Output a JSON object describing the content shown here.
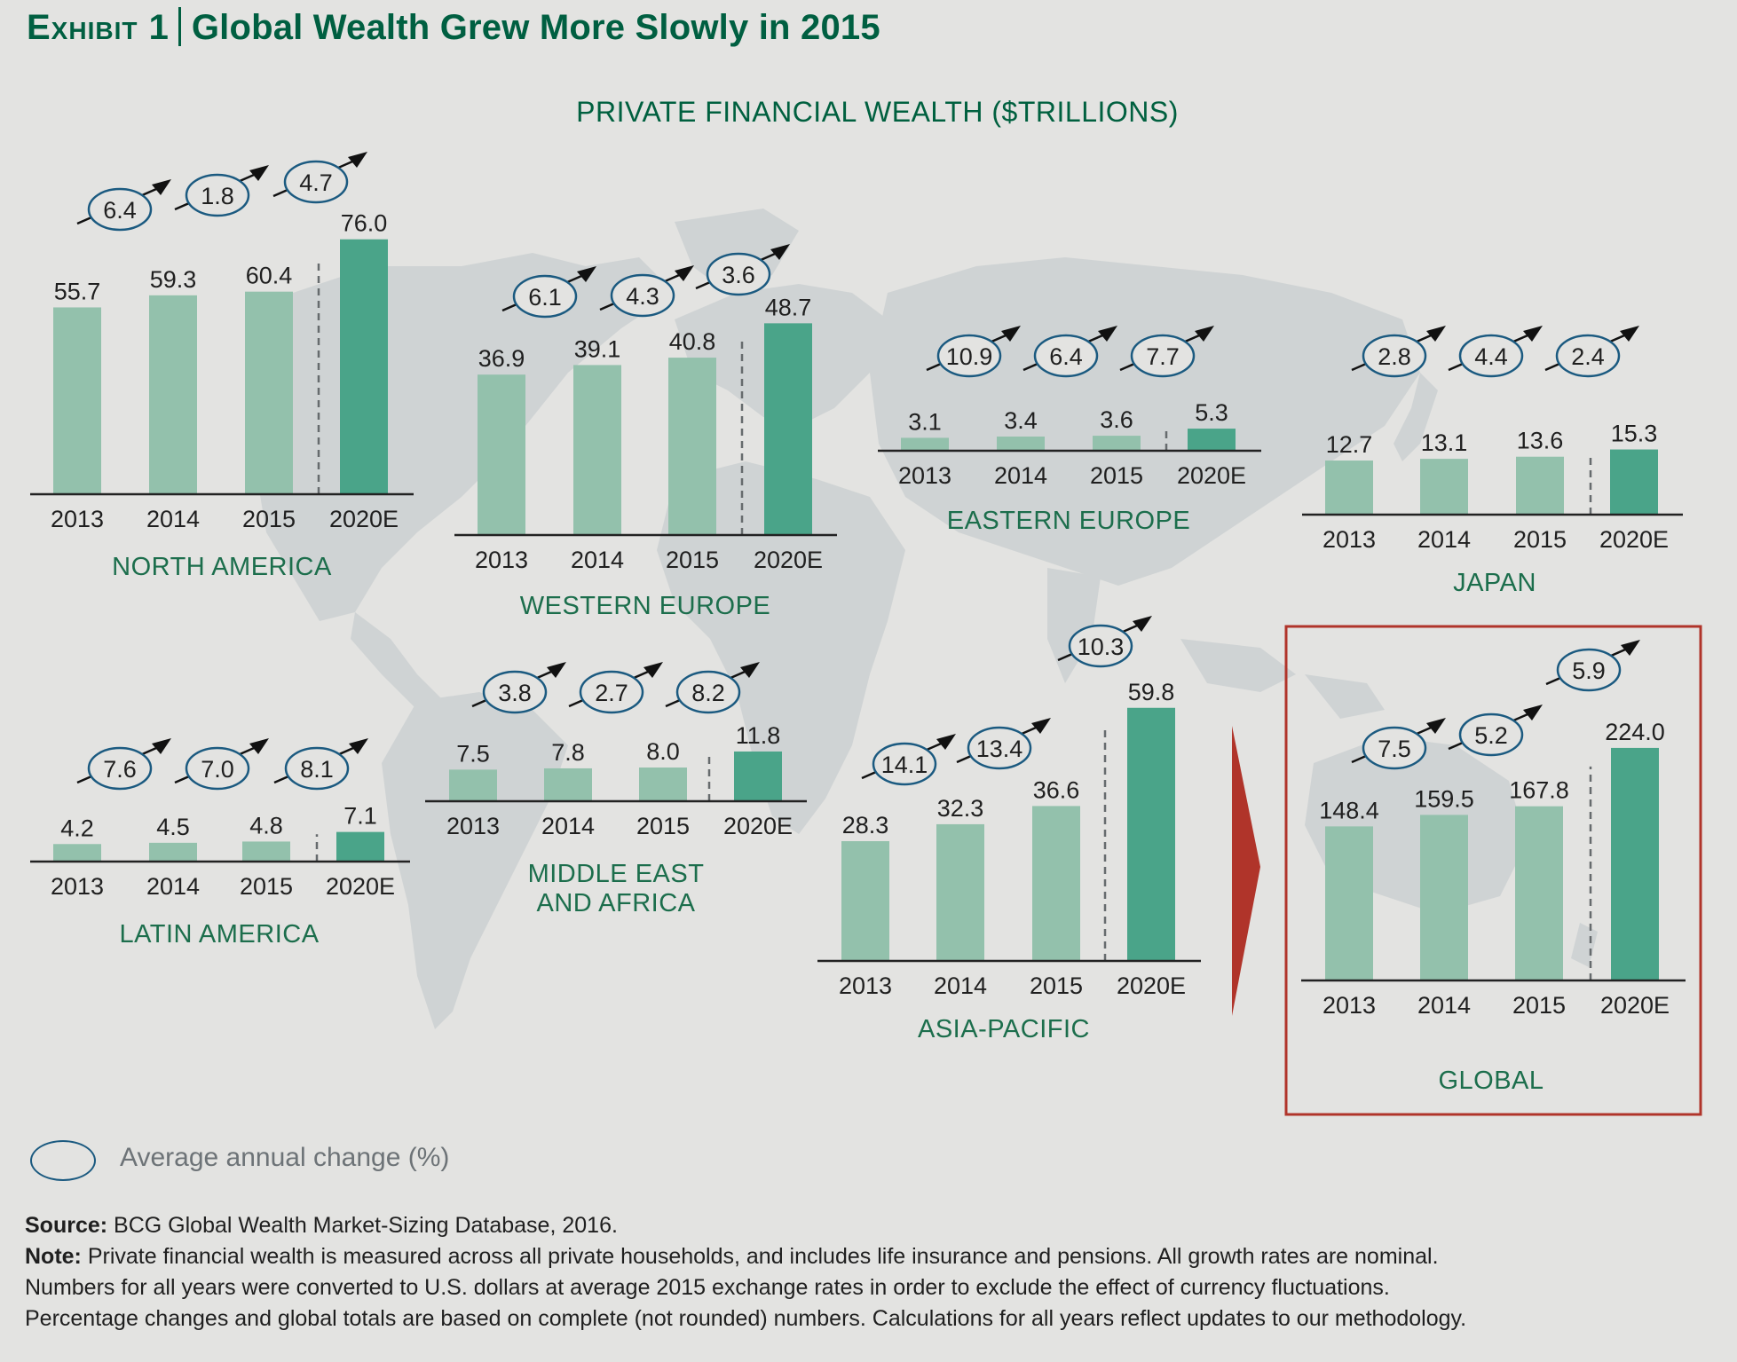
{
  "header": {
    "exhibit_label": "Exhibit 1",
    "title": "Global Wealth Grew More Slowly in 2015",
    "subtitle": "PRIVATE FINANCIAL WEALTH ($TRILLIONS)"
  },
  "legend": {
    "label": "Average annual change (%)"
  },
  "footer": {
    "source_label": "Source:",
    "source_text": "BCG Global Wealth Market-Sizing Database, 2016.",
    "note_label": "Note:",
    "note_line1": "Private financial wealth is measured across all private households, and includes life insurance and pensions. All growth rates are nominal.",
    "note_line2": "Numbers for all years were converted to U.S. dollars at average 2015 exchange rates in order to exclude the effect of currency fluctuations.",
    "note_line3": "Percentage changes and global totals are based on complete (not rounded) numbers. Calculations for all years reflect updates to our methodology."
  },
  "colors": {
    "actual_bar": "#93c1ac",
    "estimate_bar": "#4aa489",
    "growth_ellipse": "#1b5a80",
    "region_label": "#1c6e4c",
    "title": "#005f41",
    "highlight_box": "#b0342a",
    "map": "#cfd3d4",
    "background": "#e3e3e1"
  },
  "chart_data": {
    "type": "bar",
    "title": "PRIVATE FINANCIAL WEALTH ($TRILLIONS)",
    "xlabel": "",
    "ylabel": "$ trillions",
    "categories": [
      "2013",
      "2014",
      "2015",
      "2020E"
    ],
    "estimate_category": "2020E",
    "growth_label": "Average annual change (%)",
    "panels": [
      {
        "id": "north-america",
        "region": "NORTH AMERICA",
        "values": [
          55.7,
          59.3,
          60.4,
          76.0
        ],
        "value_labels": [
          "55.7",
          "59.3",
          "60.4",
          "76.0"
        ],
        "growth": [
          "6.4",
          "1.8",
          "4.7"
        ]
      },
      {
        "id": "western-europe",
        "region": "WESTERN EUROPE",
        "values": [
          36.9,
          39.1,
          40.8,
          48.7
        ],
        "value_labels": [
          "36.9",
          "39.1",
          "40.8",
          "48.7"
        ],
        "growth": [
          "6.1",
          "4.3",
          "3.6"
        ]
      },
      {
        "id": "eastern-europe",
        "region": "EASTERN EUROPE",
        "values": [
          3.1,
          3.4,
          3.6,
          5.3
        ],
        "value_labels": [
          "3.1",
          "3.4",
          "3.6",
          "5.3"
        ],
        "growth": [
          "10.9",
          "6.4",
          "7.7"
        ]
      },
      {
        "id": "japan",
        "region": "JAPAN",
        "values": [
          12.7,
          13.1,
          13.6,
          15.3
        ],
        "value_labels": [
          "12.7",
          "13.1",
          "13.6",
          "15.3"
        ],
        "growth": [
          "2.8",
          "4.4",
          "2.4"
        ]
      },
      {
        "id": "latin-america",
        "region": "LATIN AMERICA",
        "values": [
          4.2,
          4.5,
          4.8,
          7.1
        ],
        "value_labels": [
          "4.2",
          "4.5",
          "4.8",
          "7.1"
        ],
        "growth": [
          "7.6",
          "7.0",
          "8.1"
        ]
      },
      {
        "id": "middle-east-africa",
        "region": "MIDDLE EAST AND AFRICA",
        "region_lines": [
          "MIDDLE EAST",
          "AND AFRICA"
        ],
        "values": [
          7.5,
          7.8,
          8.0,
          11.8
        ],
        "value_labels": [
          "7.5",
          "7.8",
          "8.0",
          "11.8"
        ],
        "growth": [
          "3.8",
          "2.7",
          "8.2"
        ]
      },
      {
        "id": "asia-pacific",
        "region": "ASIA-PACIFIC",
        "values": [
          28.3,
          32.3,
          36.6,
          59.8
        ],
        "value_labels": [
          "28.3",
          "32.3",
          "36.6",
          "59.8"
        ],
        "growth": [
          "14.1",
          "13.4",
          "10.3"
        ]
      },
      {
        "id": "global",
        "region": "GLOBAL",
        "values": [
          148.4,
          159.5,
          167.8,
          224.0
        ],
        "value_labels": [
          "148.4",
          "159.5",
          "167.8",
          "224.0"
        ],
        "growth": [
          "7.5",
          "5.2",
          "5.9"
        ],
        "highlighted": true
      }
    ]
  }
}
